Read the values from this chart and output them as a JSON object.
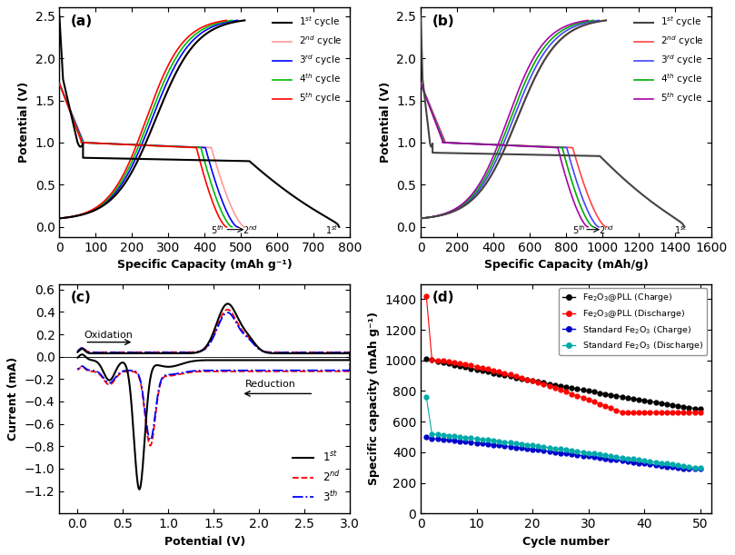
{
  "panel_a": {
    "title": "(a)",
    "xlabel": "Specific Capacity (mAh g⁻¹)",
    "ylabel": "Potential (V)",
    "xlim": [
      0,
      800
    ],
    "ylim": [
      -0.12,
      2.6
    ],
    "xticks": [
      0,
      100,
      200,
      300,
      400,
      500,
      600,
      700,
      800
    ],
    "yticks": [
      0.0,
      0.5,
      1.0,
      1.5,
      2.0,
      2.5
    ],
    "cycles_colors": [
      "#000000",
      "#FF9999",
      "#0000FF",
      "#00BB00",
      "#FF0000"
    ],
    "discharge_caps": [
      770,
      510,
      490,
      475,
      460
    ],
    "charge_caps": [
      510,
      490,
      475,
      460
    ],
    "plateau_v": 0.82
  },
  "panel_b": {
    "title": "(b)",
    "xlabel": "Specific Capacity (mAh/g)",
    "ylabel": "Potential (V)",
    "xlim": [
      0,
      1600
    ],
    "ylim": [
      -0.12,
      2.6
    ],
    "xticks": [
      0,
      200,
      400,
      600,
      800,
      1000,
      1200,
      1400,
      1600
    ],
    "yticks": [
      0.0,
      0.5,
      1.0,
      1.5,
      2.0,
      2.5
    ],
    "cycles_colors": [
      "#444444",
      "#FF4444",
      "#4444FF",
      "#00AA00",
      "#AA00AA"
    ],
    "discharge_caps": [
      1450,
      1020,
      980,
      950,
      920
    ],
    "charge_caps": [
      1020,
      980,
      950,
      920
    ],
    "plateau_v": 0.88
  },
  "panel_c": {
    "title": "(c)",
    "xlabel": "Potential (V)",
    "ylabel": "Current (mA)",
    "xlim": [
      -0.2,
      3.0
    ],
    "ylim": [
      -1.4,
      0.65
    ],
    "xticks": [
      0.0,
      0.5,
      1.0,
      1.5,
      2.0,
      2.5,
      3.0
    ],
    "yticks": [
      -1.2,
      -1.0,
      -0.8,
      -0.6,
      -0.4,
      -0.2,
      0.0,
      0.2,
      0.4,
      0.6
    ]
  },
  "panel_d": {
    "title": "(d)",
    "xlabel": "Cycle number",
    "ylabel": "Specific capacity (mAh g⁻¹)",
    "xlim": [
      0,
      52
    ],
    "ylim": [
      0,
      1500
    ],
    "xticks": [
      0,
      10,
      20,
      30,
      40,
      50
    ],
    "yticks": [
      0,
      200,
      400,
      600,
      800,
      1000,
      1200,
      1400
    ],
    "fe2o3pll_charge_color": "#000000",
    "fe2o3pll_discharge_color": "#FF0000",
    "fe2o3_charge_color": "#0000CC",
    "fe2o3_discharge_color": "#00AAAA"
  },
  "figure_bg": "#ffffff"
}
